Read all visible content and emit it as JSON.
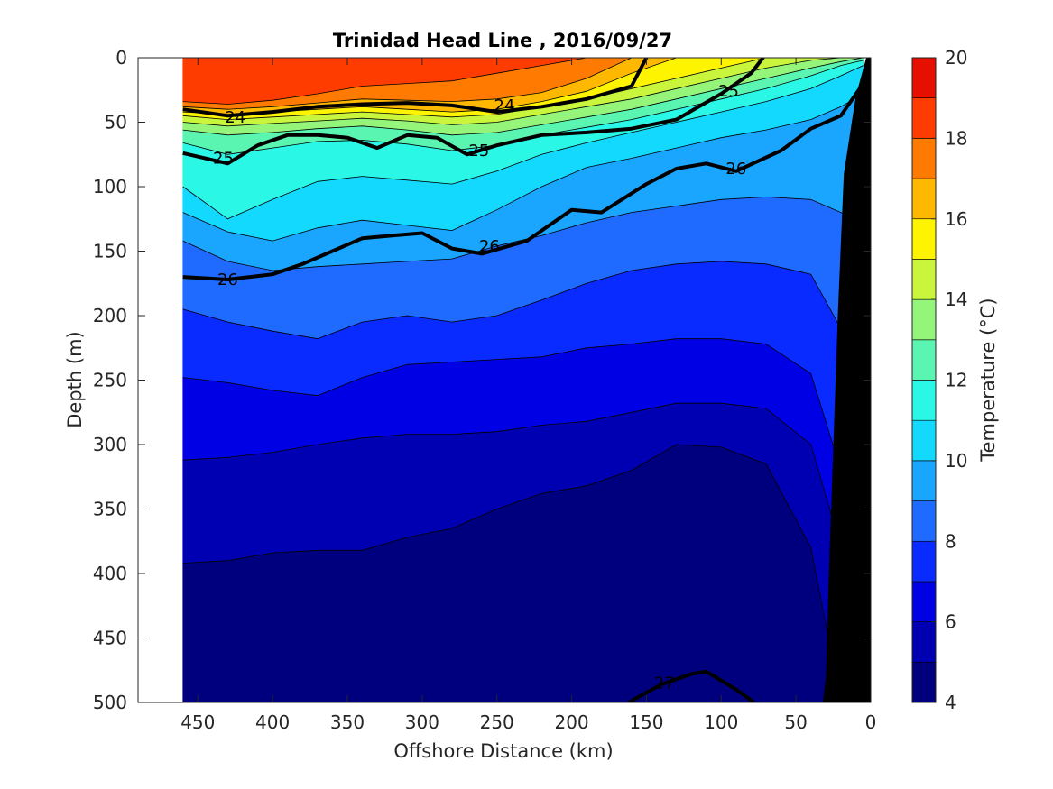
{
  "chart_data": {
    "type": "heatmap",
    "title": "Trinidad Head Line , 2016/09/27",
    "xlabel": "Offshore Distance (km)",
    "ylabel": "Depth (m)",
    "xlim": [
      490,
      0
    ],
    "ylim": [
      0,
      500
    ],
    "x_ticks": [
      450,
      400,
      350,
      300,
      250,
      200,
      150,
      100,
      50,
      0
    ],
    "y_ticks": [
      0,
      50,
      100,
      150,
      200,
      250,
      300,
      350,
      400,
      450,
      500
    ],
    "colorbar": {
      "label": "Temperature (°C)",
      "ticks": [
        20,
        18,
        16,
        14,
        12,
        10,
        8,
        6,
        4
      ],
      "levels": [
        4,
        5,
        6,
        7,
        8,
        9,
        10,
        11,
        12,
        13,
        14,
        15,
        16,
        17,
        18,
        19,
        20
      ],
      "colors": [
        "#00007f",
        "#0000b2",
        "#0000e5",
        "#0a2bff",
        "#1f6bff",
        "#1aa6ff",
        "#13d9ff",
        "#2af7e6",
        "#5af5b0",
        "#94f57a",
        "#c9f53c",
        "#fff400",
        "#ffb800",
        "#ff7a00",
        "#ff3c00",
        "#e60f00",
        "#a30000"
      ]
    },
    "temperature_isolines": [
      {
        "level": 19,
        "depths": [
          0,
          0,
          0,
          0,
          0,
          0,
          0,
          0,
          0,
          0,
          0,
          0,
          0,
          0,
          0,
          0,
          0
        ]
      },
      {
        "level": 18,
        "depths": [
          34,
          36,
          33,
          28,
          22,
          20,
          18,
          12,
          6,
          0,
          0,
          0,
          0,
          0,
          0,
          0,
          0
        ]
      },
      {
        "level": 17,
        "depths": [
          38,
          40,
          38,
          35,
          32,
          33,
          34,
          32,
          27,
          16,
          0,
          0,
          0,
          0,
          0,
          0,
          0
        ]
      },
      {
        "level": 16,
        "depths": [
          42,
          44,
          42,
          40,
          38,
          40,
          42,
          40,
          34,
          26,
          12,
          0,
          0,
          0,
          0,
          0,
          0
        ]
      },
      {
        "level": 15,
        "depths": [
          45,
          48,
          46,
          44,
          42,
          44,
          46,
          44,
          38,
          32,
          24,
          16,
          8,
          0,
          0,
          0,
          0
        ]
      },
      {
        "level": 14,
        "depths": [
          50,
          53,
          51,
          49,
          47,
          49,
          52,
          50,
          44,
          38,
          32,
          24,
          16,
          8,
          2,
          0,
          0
        ]
      },
      {
        "level": 13,
        "depths": [
          56,
          60,
          58,
          55,
          53,
          56,
          60,
          58,
          52,
          46,
          40,
          32,
          24,
          16,
          8,
          3,
          0
        ]
      },
      {
        "level": 12,
        "depths": [
          66,
          75,
          70,
          65,
          64,
          67,
          72,
          68,
          60,
          54,
          48,
          40,
          32,
          24,
          14,
          6,
          2
        ]
      },
      {
        "level": 11,
        "depths": [
          100,
          125,
          110,
          96,
          92,
          95,
          98,
          88,
          75,
          66,
          58,
          50,
          42,
          34,
          24,
          14,
          6
        ]
      },
      {
        "level": 10,
        "depths": [
          120,
          135,
          142,
          132,
          126,
          130,
          134,
          118,
          100,
          85,
          78,
          70,
          62,
          56,
          48,
          38,
          28
        ]
      },
      {
        "level": 9,
        "depths": [
          142,
          158,
          165,
          162,
          160,
          158,
          156,
          146,
          138,
          128,
          120,
          115,
          110,
          108,
          110,
          120,
          130
        ]
      },
      {
        "level": 8,
        "depths": [
          195,
          205,
          212,
          218,
          205,
          200,
          205,
          200,
          188,
          175,
          165,
          160,
          158,
          160,
          168,
          210,
          240
        ]
      },
      {
        "level": 7,
        "depths": [
          248,
          252,
          258,
          262,
          248,
          238,
          236,
          234,
          232,
          225,
          222,
          218,
          218,
          222,
          245,
          320,
          350
        ]
      },
      {
        "level": 6,
        "depths": [
          312,
          310,
          306,
          300,
          295,
          292,
          292,
          290,
          285,
          282,
          275,
          268,
          268,
          272,
          300,
          380,
          410
        ]
      },
      {
        "level": 5,
        "depths": [
          392,
          390,
          384,
          382,
          382,
          372,
          365,
          350,
          338,
          332,
          320,
          300,
          302,
          315,
          380,
          500,
          500
        ]
      },
      {
        "level": 4,
        "depths": [
          500,
          500,
          500,
          500,
          500,
          500,
          500,
          500,
          500,
          500,
          500,
          500,
          500,
          500,
          500,
          500,
          500
        ]
      }
    ],
    "isoline_x_km": [
      460,
      430,
      400,
      370,
      340,
      310,
      280,
      250,
      220,
      190,
      160,
      130,
      100,
      70,
      40,
      20,
      5
    ],
    "density_contours": [
      {
        "label": "24",
        "x_km": [
          460,
          430,
          400,
          370,
          340,
          310,
          280,
          250,
          220,
          190,
          160,
          150
        ],
        "depths": [
          40,
          45,
          42,
          38,
          36,
          35,
          37,
          42,
          38,
          32,
          22,
          0
        ]
      },
      {
        "label": "25",
        "x_km": [
          460,
          430,
          410,
          390,
          370,
          350,
          330,
          310,
          290,
          270,
          250,
          220,
          190,
          160,
          130,
          100,
          80,
          72
        ],
        "depths": [
          74,
          82,
          68,
          60,
          60,
          62,
          70,
          60,
          62,
          75,
          68,
          60,
          58,
          55,
          48,
          28,
          12,
          0
        ]
      },
      {
        "label": "26",
        "x_km": [
          460,
          430,
          400,
          380,
          360,
          340,
          320,
          300,
          280,
          260,
          230,
          200,
          180,
          150,
          130,
          110,
          90,
          60,
          40,
          20,
          5
        ],
        "depths": [
          170,
          172,
          168,
          160,
          150,
          140,
          138,
          136,
          148,
          152,
          142,
          118,
          120,
          98,
          86,
          82,
          88,
          72,
          55,
          45,
          20
        ]
      },
      {
        "label": "27",
        "x_km": [
          162,
          140,
          120,
          110,
          90,
          78
        ],
        "depths": [
          500,
          486,
          478,
          476,
          490,
          500
        ]
      }
    ],
    "contour_label_positions": [
      {
        "label": "24",
        "x_km": 425,
        "depth": 46
      },
      {
        "label": "24",
        "x_km": 245,
        "depth": 37
      },
      {
        "label": "25",
        "x_km": 433,
        "depth": 78
      },
      {
        "label": "25",
        "x_km": 262,
        "depth": 72
      },
      {
        "label": "25",
        "x_km": 95,
        "depth": 26
      },
      {
        "label": "26",
        "x_km": 430,
        "depth": 172
      },
      {
        "label": "26",
        "x_km": 255,
        "depth": 146
      },
      {
        "label": "26",
        "x_km": 90,
        "depth": 86
      },
      {
        "label": "27",
        "x_km": 138,
        "depth": 485
      }
    ],
    "bathymetry_depths": [
      [
        0,
        0
      ],
      [
        3,
        0
      ],
      [
        10,
        30
      ],
      [
        18,
        90
      ],
      [
        22,
        200
      ],
      [
        25,
        300
      ],
      [
        28,
        400
      ],
      [
        30,
        480
      ],
      [
        32,
        500
      ]
    ]
  }
}
